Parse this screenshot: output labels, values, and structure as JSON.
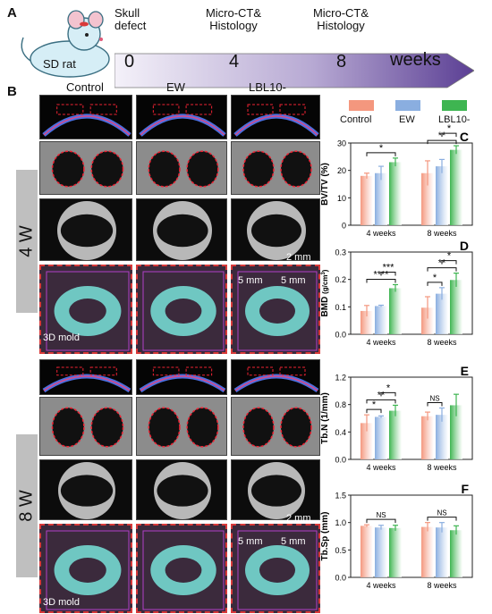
{
  "panel_a": {
    "letter": "A",
    "animal_label": "SD rat",
    "events": [
      {
        "label_lines": [
          "Skull",
          "defect"
        ],
        "tick": "0"
      },
      {
        "label_lines": [
          "Micro-CT&",
          "Histology"
        ],
        "tick": "4"
      },
      {
        "label_lines": [
          "Micro-CT&",
          "Histology"
        ],
        "tick": "8"
      }
    ],
    "unit": "weeks"
  },
  "panel_b": {
    "letter": "B",
    "columns": [
      "Control",
      "EW",
      "LBL10-"
    ],
    "rows": [
      "4 W",
      "8 W"
    ],
    "scale_bar": "2 mm",
    "mold_label": "3D mold",
    "mold_scale": "5 mm"
  },
  "legend": {
    "items": [
      {
        "name": "Control",
        "color": "#f4977e"
      },
      {
        "name": "EW",
        "color": "#8aaee0"
      },
      {
        "name": "LBL10-",
        "color": "#3eb551"
      }
    ]
  },
  "chart_data": [
    {
      "letter": "C",
      "type": "bar",
      "ylabel": "BV/TV (%)",
      "categories": [
        "4 weeks",
        "8 weeks"
      ],
      "ylim": [
        0,
        30
      ],
      "yticks": [
        "0",
        "10",
        "20",
        "30"
      ],
      "series": [
        {
          "name": "Control",
          "values": [
            18.0,
            19.0
          ],
          "errors": [
            1.0,
            4.5
          ]
        },
        {
          "name": "EW",
          "values": [
            19.0,
            21.5
          ],
          "errors": [
            2.5,
            2.5
          ]
        },
        {
          "name": "LBL10-",
          "values": [
            23.0,
            27.5
          ],
          "errors": [
            1.5,
            1.5
          ]
        }
      ],
      "significance": [
        {
          "group": 0,
          "from": 0,
          "to": 2,
          "label": "*",
          "bracket": "merge"
        },
        {
          "group": 1,
          "from": 0,
          "to": 2,
          "label": "**"
        },
        {
          "group": 1,
          "from": 1,
          "to": 2,
          "label": "*"
        }
      ]
    },
    {
      "letter": "D",
      "type": "bar",
      "ylabel": "BMD (g/cm3)",
      "ylabel_main": "BMD",
      "ylabel_unit": "(g/cm",
      "ylabel_sup": "3",
      "categories": [
        "4 weeks",
        "8 weeks"
      ],
      "ylim": [
        0,
        0.3
      ],
      "yticks": [
        "0.0",
        "0.1",
        "0.2",
        "0.3"
      ],
      "series": [
        {
          "name": "Control",
          "values": [
            0.085,
            0.097
          ],
          "errors": [
            0.02,
            0.04
          ]
        },
        {
          "name": "EW",
          "values": [
            0.103,
            0.148
          ],
          "errors": [
            0.003,
            0.022
          ]
        },
        {
          "name": "LBL10-",
          "values": [
            0.168,
            0.198
          ],
          "errors": [
            0.013,
            0.025
          ]
        }
      ],
      "significance": [
        {
          "group": 0,
          "from": 0,
          "to": 2,
          "label": "****"
        },
        {
          "group": 0,
          "from": 1,
          "to": 2,
          "label": "***"
        },
        {
          "group": 1,
          "from": 0,
          "to": 1,
          "label": "*"
        },
        {
          "group": 1,
          "from": 0,
          "to": 2,
          "label": "**"
        },
        {
          "group": 1,
          "from": 1,
          "to": 2,
          "label": "*"
        }
      ]
    },
    {
      "letter": "E",
      "type": "bar",
      "ylabel": "Tb.N (1/mm)",
      "categories": [
        "4 weeks",
        "8 weeks"
      ],
      "ylim": [
        0,
        1.2
      ],
      "yticks": [
        "0.0",
        "0.4",
        "0.8",
        "1.2"
      ],
      "series": [
        {
          "name": "Control",
          "values": [
            0.53,
            0.63
          ],
          "errors": [
            0.12,
            0.06
          ]
        },
        {
          "name": "EW",
          "values": [
            0.62,
            0.65
          ],
          "errors": [
            0.015,
            0.1
          ]
        },
        {
          "name": "LBL10-",
          "values": [
            0.71,
            0.79
          ],
          "errors": [
            0.08,
            0.16
          ]
        }
      ],
      "significance": [
        {
          "group": 0,
          "from": 0,
          "to": 1,
          "label": "*"
        },
        {
          "group": 0,
          "from": 0,
          "to": 2,
          "label": "**"
        },
        {
          "group": 0,
          "from": 1,
          "to": 2,
          "label": "*"
        },
        {
          "group": 1,
          "from": 0,
          "to": 1,
          "label": "NS"
        }
      ]
    },
    {
      "letter": "F",
      "type": "bar",
      "ylabel": "Tb.Sp (mm)",
      "categories": [
        "4 weeks",
        "8 weeks"
      ],
      "ylim": [
        0,
        1.5
      ],
      "yticks": [
        "0.0",
        "0.5",
        "1.0",
        "1.5"
      ],
      "series": [
        {
          "name": "Control",
          "values": [
            0.94,
            0.92
          ],
          "errors": [
            0.02,
            0.08
          ]
        },
        {
          "name": "EW",
          "values": [
            0.91,
            0.91
          ],
          "errors": [
            0.04,
            0.09
          ]
        },
        {
          "name": "LBL10-",
          "values": [
            0.9,
            0.86
          ],
          "errors": [
            0.05,
            0.08
          ]
        }
      ],
      "significance": [
        {
          "group": 0,
          "from": 0,
          "to": 2,
          "label": "NS"
        },
        {
          "group": 1,
          "from": 0,
          "to": 2,
          "label": "NS"
        }
      ]
    }
  ]
}
